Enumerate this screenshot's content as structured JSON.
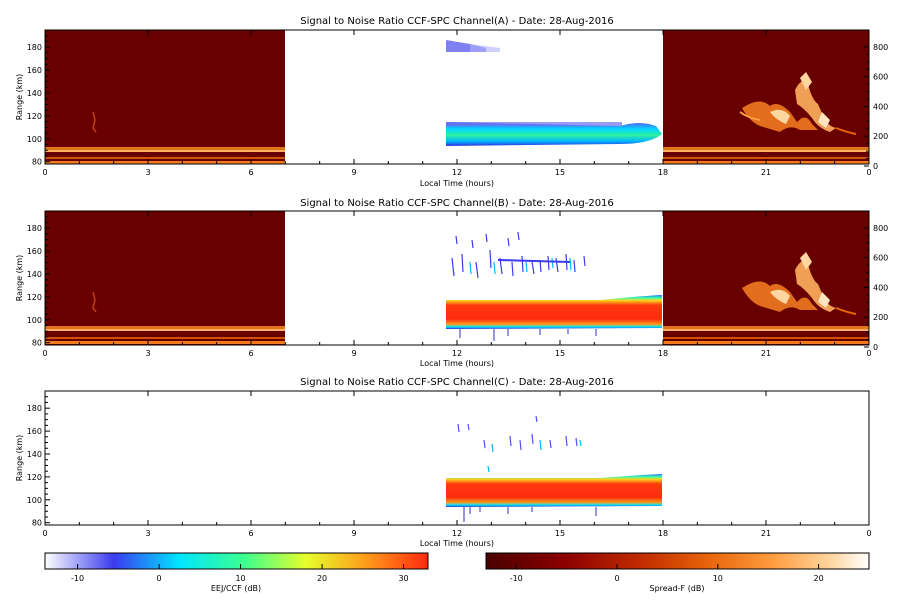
{
  "chart_data": {
    "type": "heatmap",
    "panels": [
      {
        "id": "A",
        "title": "Signal to Noise Ratio CCF-SPC Channel(A) - Date: 28-Aug-2016",
        "xlabel": "Local Time (hours)",
        "ylabel": "Range (km)",
        "xlim": [
          0,
          24
        ],
        "ylim": [
          78,
          195
        ],
        "x_ticks": [
          "0",
          "3",
          "6",
          "9",
          "12",
          "15",
          "18",
          "21",
          "0"
        ],
        "y_ticks": [
          "80",
          "100",
          "120",
          "140",
          "160",
          "180"
        ],
        "y2_ticks": [
          "0",
          "200",
          "400",
          "600",
          "800"
        ],
        "spreadf_hours": [
          [
            0,
            7
          ],
          [
            18,
            24
          ]
        ],
        "eej_layers": [
          {
            "t0": 11.7,
            "t1": 18,
            "r0": 95,
            "r1": 116,
            "kind": "blue-band"
          },
          {
            "t0": 11.7,
            "t1": 13.0,
            "r0": 175,
            "r1": 186,
            "kind": "faint"
          }
        ]
      },
      {
        "id": "B",
        "title": "Signal to Noise Ratio CCF-SPC Channel(B) - Date: 28-Aug-2016",
        "xlabel": "Local Time (hours)",
        "ylabel": "Range (km)",
        "xlim": [
          0,
          24
        ],
        "ylim": [
          78,
          195
        ],
        "x_ticks": [
          "0",
          "3",
          "6",
          "9",
          "12",
          "15",
          "18",
          "21",
          "0"
        ],
        "y_ticks": [
          "80",
          "100",
          "120",
          "140",
          "160",
          "180"
        ],
        "y2_ticks": [
          "0",
          "200",
          "400",
          "600",
          "800"
        ],
        "spreadf_hours": [
          [
            0,
            7
          ],
          [
            18,
            24
          ]
        ],
        "eej_layers": [
          {
            "t0": 11.7,
            "t1": 18,
            "r0": 93,
            "r1": 116,
            "kind": "red-core"
          },
          {
            "t0": 11.7,
            "t1": 15.8,
            "r0": 140,
            "r1": 175,
            "kind": "streaks"
          }
        ]
      },
      {
        "id": "C",
        "title": "Signal to Noise Ratio CCF-SPC Channel(C) - Date: 28-Aug-2016",
        "xlabel": "Local Time (hours)",
        "ylabel": "Range (km)",
        "xlim": [
          0,
          24
        ],
        "ylim": [
          78,
          195
        ],
        "x_ticks": [
          "0",
          "3",
          "6",
          "9",
          "12",
          "15",
          "18",
          "21",
          "0"
        ],
        "y_ticks": [
          "80",
          "100",
          "120",
          "140",
          "160",
          "180"
        ],
        "y2_ticks": [],
        "spreadf_hours": [],
        "eej_layers": [
          {
            "t0": 11.7,
            "t1": 18,
            "r0": 93,
            "r1": 118,
            "kind": "red-core"
          },
          {
            "t0": 11.7,
            "t1": 15.8,
            "r0": 140,
            "r1": 170,
            "kind": "streaks"
          }
        ]
      }
    ],
    "colorbars": [
      {
        "label": "EEJ/CCF (dB)",
        "range": [
          -14,
          33
        ],
        "ticks": [
          "-10",
          "0",
          "10",
          "20",
          "30"
        ],
        "colors": [
          "#ffffff",
          "#3b3bef",
          "#00e5ff",
          "#3cff8f",
          "#e5ff2d",
          "#ff9a1a",
          "#ff2a10"
        ]
      },
      {
        "label": "Spread-F (dB)",
        "range": [
          -13,
          25
        ],
        "ticks": [
          "-10",
          "0",
          "10",
          "20"
        ],
        "colors": [
          "#4a0000",
          "#8b0000",
          "#c02a00",
          "#e8640a",
          "#ff9d40",
          "#ffd6a0",
          "#ffffff"
        ]
      }
    ]
  }
}
